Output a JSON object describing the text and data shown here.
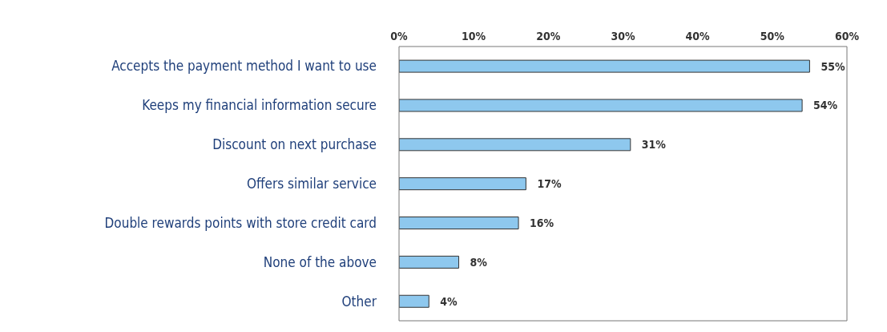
{
  "chart_data": {
    "type": "bar",
    "orientation": "horizontal",
    "categories": [
      "Accepts the payment method I want to use",
      "Keeps my financial information secure",
      "Discount on next purchase",
      "Offers similar service",
      "Double rewards points with store credit card",
      "None of the above",
      "Other"
    ],
    "values": [
      55,
      54,
      31,
      17,
      16,
      8,
      4
    ],
    "value_labels": [
      "55%",
      "54%",
      "31%",
      "17%",
      "16%",
      "8%",
      "4%"
    ],
    "color": "#8ec8ee",
    "xlim": [
      0,
      60
    ],
    "xticks": [
      {
        "value": 0,
        "label": "0%"
      },
      {
        "value": 10,
        "label": "10%"
      },
      {
        "value": 20,
        "label": "20%"
      },
      {
        "value": 30,
        "label": "30%"
      },
      {
        "value": 40,
        "label": "40%"
      },
      {
        "value": 50,
        "label": "50%"
      },
      {
        "value": 60,
        "label": "60%"
      }
    ],
    "grid": false
  }
}
